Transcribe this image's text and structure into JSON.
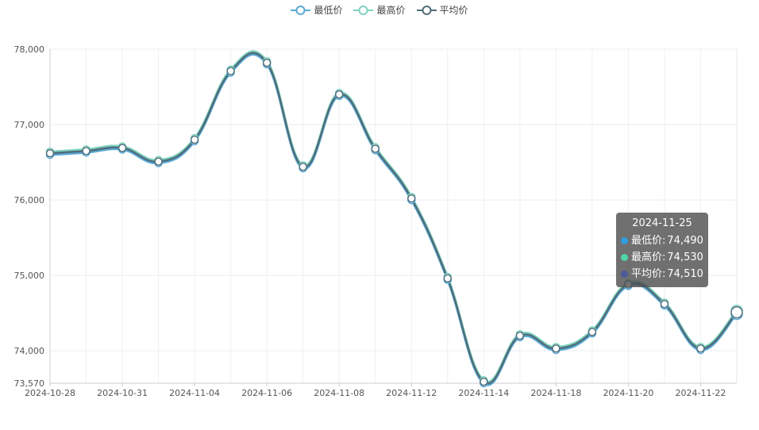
{
  "legend": {
    "items": [
      {
        "label": "最低价",
        "color": "#5aa9d6"
      },
      {
        "label": "最高价",
        "color": "#7fd3c0"
      },
      {
        "label": "平均价",
        "color": "#4f6d7a"
      }
    ]
  },
  "tooltip": {
    "date": "2024-11-25",
    "rows": [
      {
        "label": "最低价:",
        "value": "74,490",
        "color": "#2f9fe0"
      },
      {
        "label": "最高价:",
        "value": "74,530",
        "color": "#4fd6a8"
      },
      {
        "label": "平均价:",
        "value": "74,510",
        "color": "#4a5a9a"
      }
    ]
  },
  "chart_data": {
    "type": "line",
    "x_tick_labels": [
      "2024-10-28",
      "2024-10-31",
      "2024-11-04",
      "2024-11-06",
      "2024-11-08",
      "2024-11-12",
      "2024-11-14",
      "2024-11-18",
      "2024-11-20",
      "2024-11-22"
    ],
    "y_tick_labels": [
      "73,570",
      "74,000",
      "75,000",
      "76,000",
      "77,000",
      "78,000"
    ],
    "ylim": [
      73570,
      78000
    ],
    "grid": true,
    "legend_position": "top-center",
    "series": [
      {
        "name": "最低价",
        "values": [
          76600,
          76630,
          76670,
          76490,
          76780,
          77690,
          77800,
          76420,
          77380,
          76660,
          76000,
          74940,
          73570,
          74180,
          74010,
          74230,
          74860,
          74600,
          74010,
          74490
        ]
      },
      {
        "name": "最高价",
        "values": [
          76640,
          76670,
          76710,
          76530,
          76820,
          77730,
          77840,
          76460,
          77420,
          76700,
          76040,
          74980,
          73610,
          74220,
          74050,
          74270,
          74900,
          74640,
          74050,
          74530
        ]
      },
      {
        "name": "平均价",
        "values": [
          76620,
          76650,
          76690,
          76510,
          76800,
          77710,
          77820,
          76440,
          77400,
          76680,
          76020,
          74960,
          73590,
          74200,
          74030,
          74250,
          74880,
          74620,
          74030,
          74510
        ]
      }
    ]
  }
}
